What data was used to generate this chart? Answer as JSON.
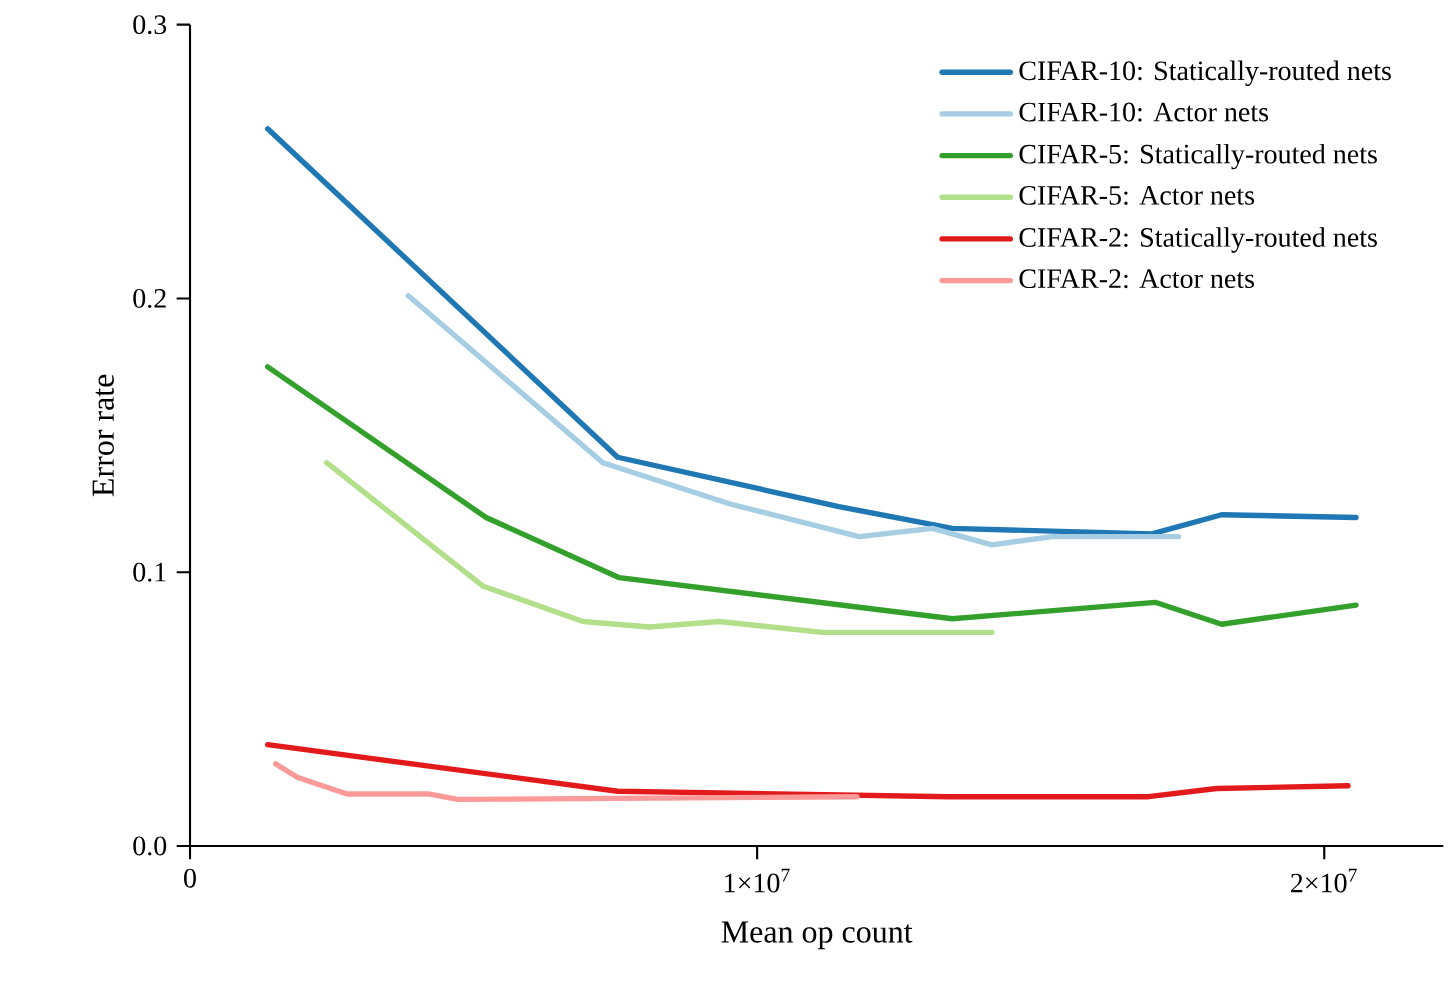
{
  "chart_data": {
    "type": "line",
    "xlabel": "Mean op count",
    "ylabel": "Error rate",
    "xlim": [
      0,
      22100000
    ],
    "ylim": [
      0,
      0.3
    ],
    "xticks": [
      0,
      {
        "value": 10000000,
        "label": "1×10$^{7}$"
      },
      {
        "value": 20000000,
        "label": "2×10$^{7}$"
      }
    ],
    "yticks": [
      {
        "value": 0,
        "label": "0.0"
      },
      0.1,
      0.2,
      0.3
    ],
    "grid": false,
    "legend": "top right",
    "marker": "none",
    "line_style": "solid",
    "series": [
      {
        "name": "CIFAR-10: Statically-routed nets",
        "color": "#1f78b4",
        "x": [
          1370000,
          7540000,
          11440000,
          13440000,
          16960000,
          18190000,
          20560000
        ],
        "values": [
          0.262,
          0.142,
          0.124,
          0.116,
          0.114,
          0.121,
          0.12
        ]
      },
      {
        "name": "CIFAR-10: Actor nets",
        "color": "#a6cee3",
        "x": [
          3850000,
          7280000,
          9510000,
          11800000,
          13090000,
          14140000,
          15200000,
          16960000,
          17430000
        ],
        "values": [
          0.201,
          0.14,
          0.125,
          0.113,
          0.116,
          0.11,
          0.113,
          0.113,
          0.113
        ]
      },
      {
        "name": "CIFAR-5: Statically-routed nets",
        "color": "#33a02c",
        "x": [
          1370000,
          5220000,
          7570000,
          13440000,
          17020000,
          18190000,
          20560000
        ],
        "values": [
          0.175,
          0.12,
          0.098,
          0.083,
          0.089,
          0.081,
          0.088
        ]
      },
      {
        "name": "CIFAR-5: Actor nets",
        "color": "#b2df8a",
        "x": [
          2410000,
          5160000,
          6930000,
          8100000,
          9330000,
          11150000,
          14140000
        ],
        "values": [
          0.14,
          0.095,
          0.082,
          0.08,
          0.082,
          0.078,
          0.078
        ]
      },
      {
        "name": "CIFAR-2: Statically-routed nets",
        "color": "#e31a1c",
        "x": [
          1370000,
          7540000,
          13380000,
          16900000,
          18100000,
          20420000
        ],
        "values": [
          0.037,
          0.02,
          0.018,
          0.018,
          0.021,
          0.022
        ]
      },
      {
        "name": "CIFAR-2: Actor nets",
        "color": "#fb9a99",
        "x": [
          1510000,
          1900000,
          2770000,
          4200000,
          4720000,
          11760000
        ],
        "values": [
          0.03,
          0.025,
          0.019,
          0.019,
          0.017,
          0.018
        ]
      }
    ]
  }
}
